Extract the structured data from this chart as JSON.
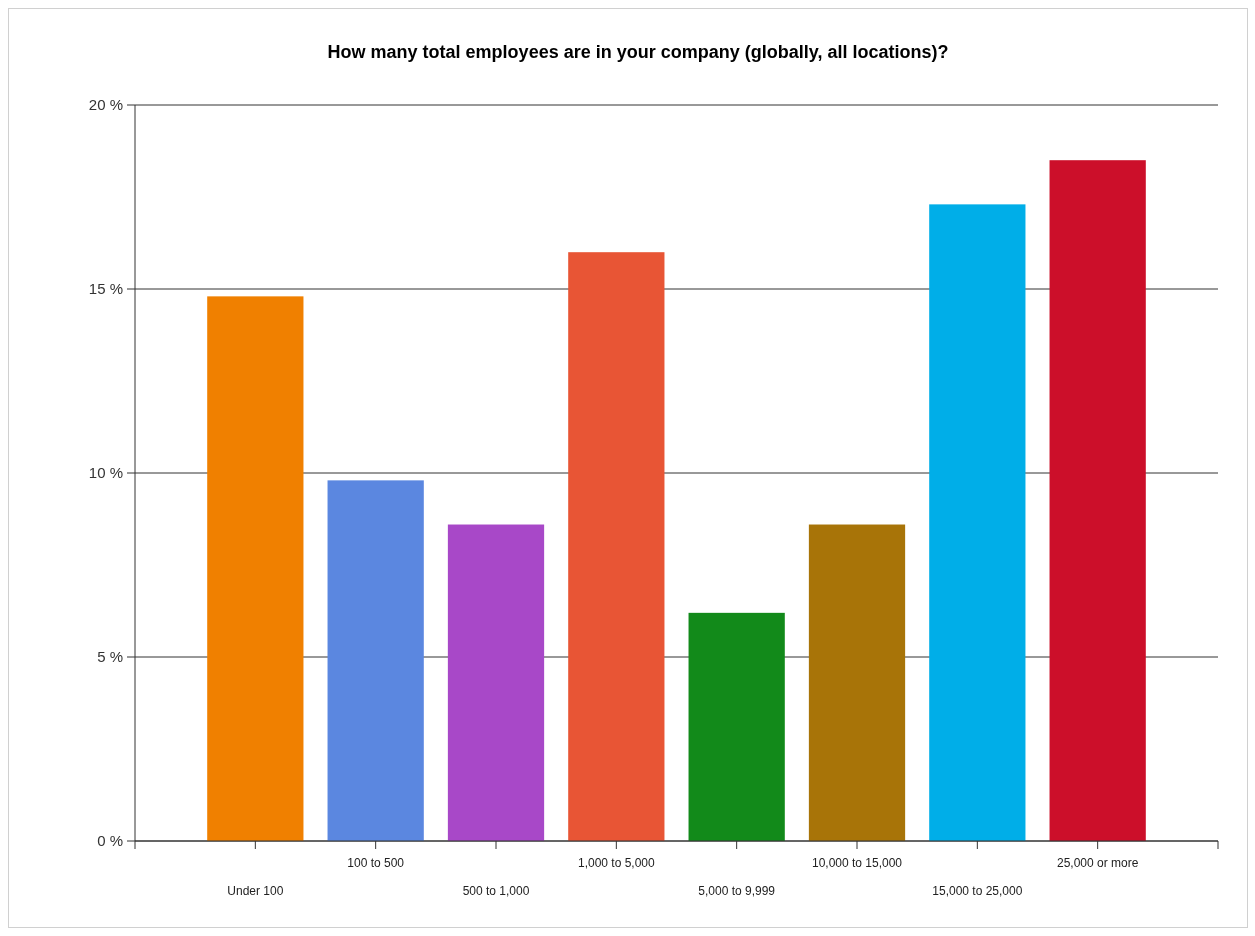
{
  "chart_data": {
    "type": "bar",
    "title": "How many total employees are in your company (globally, all locations)?",
    "categories": [
      "Under 100",
      "100 to 500",
      "500 to 1,000",
      "1,000 to 5,000",
      "5,000 to 9,999",
      "10,000 to 15,000",
      "15,000 to 25,000",
      "25,000 or more"
    ],
    "values": [
      14.8,
      9.8,
      8.6,
      16.0,
      6.2,
      8.6,
      17.3,
      18.5
    ],
    "colors": [
      "#f08000",
      "#5b87e0",
      "#a848c8",
      "#e85535",
      "#128a1a",
      "#a87408",
      "#00aee8",
      "#cc0f2a"
    ],
    "ylim": [
      0,
      20
    ],
    "yticks": [
      {
        "value": 0,
        "label": "0 %"
      },
      {
        "value": 5,
        "label": "5 %"
      },
      {
        "value": 10,
        "label": "10 %"
      },
      {
        "value": 15,
        "label": "15 %"
      },
      {
        "value": 20,
        "label": "20 %"
      }
    ],
    "grid": "y"
  }
}
